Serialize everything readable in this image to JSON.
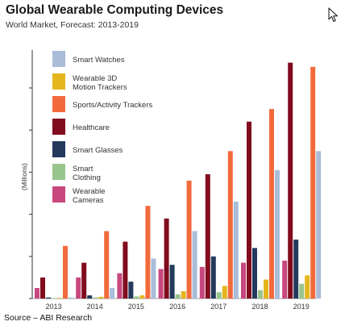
{
  "header": {
    "title": "Global Wearable Computing Devices",
    "subtitle": "World Market, Forecast: 2013-2019"
  },
  "source": "Source – ABI Research",
  "cursor_icon": "mouse-pointer-icon",
  "chart_data": {
    "type": "bar",
    "title": "Global Wearable Computing Devices",
    "subtitle": "World Market, Forecast: 2013-2019",
    "xlabel": "",
    "ylabel": "(Millions)",
    "categories": [
      "2013",
      "2014",
      "2015",
      "2016",
      "2017",
      "2018",
      "2019"
    ],
    "series": [
      {
        "name": "Wearable Cameras",
        "color": "#c8477e",
        "values": [
          5,
          10,
          12,
          14,
          15,
          17,
          18
        ]
      },
      {
        "name": "Healthcare",
        "color": "#800c1e",
        "values": [
          10,
          17,
          27,
          38,
          59,
          84,
          112
        ]
      },
      {
        "name": "Smart Glasses",
        "color": "#243a5c",
        "values": [
          0.5,
          1.5,
          8,
          16,
          20,
          24,
          28
        ]
      },
      {
        "name": "Smart Clothing",
        "color": "#98c48e",
        "values": [
          0.2,
          0.5,
          1,
          2,
          3,
          4,
          7
        ]
      },
      {
        "name": "Wearable 3D Motion Trackers",
        "color": "#e4b61e",
        "values": [
          0.3,
          0.8,
          1.5,
          3.5,
          6,
          9,
          11
        ]
      },
      {
        "name": "Sports/Activity Trackers",
        "color": "#f26a3c",
        "values": [
          25,
          32,
          44,
          56,
          70,
          90,
          110
        ]
      },
      {
        "name": "Smart Watches",
        "color": "#a9bdd9",
        "values": [
          0.5,
          5,
          19,
          32,
          46,
          61,
          70
        ]
      }
    ],
    "legend_order": [
      "Smart Watches",
      "Wearable 3D Motion Trackers",
      "Sports/Activity Trackers",
      "Healthcare",
      "Smart Glasses",
      "Smart Clothing",
      "Wearable Cameras"
    ],
    "legend_labels": {
      "Smart Watches": [
        "Smart Watches"
      ],
      "Wearable 3D Motion Trackers": [
        "Wearable 3D",
        "Motion Trackers"
      ],
      "Sports/Activity Trackers": [
        "Sports/Activity Trackers"
      ],
      "Healthcare": [
        "Healthcare"
      ],
      "Smart Glasses": [
        "Smart Glasses"
      ],
      "Smart Clothing": [
        "Smart",
        "Clothing"
      ],
      "Wearable Cameras": [
        "Wearable",
        "Cameras"
      ]
    },
    "ylim": [
      0,
      118
    ],
    "yticks": [
      0,
      20,
      40,
      60,
      80,
      100
    ],
    "ytick_labels_shown": false,
    "grid": false,
    "legend_placement": "top-left"
  }
}
